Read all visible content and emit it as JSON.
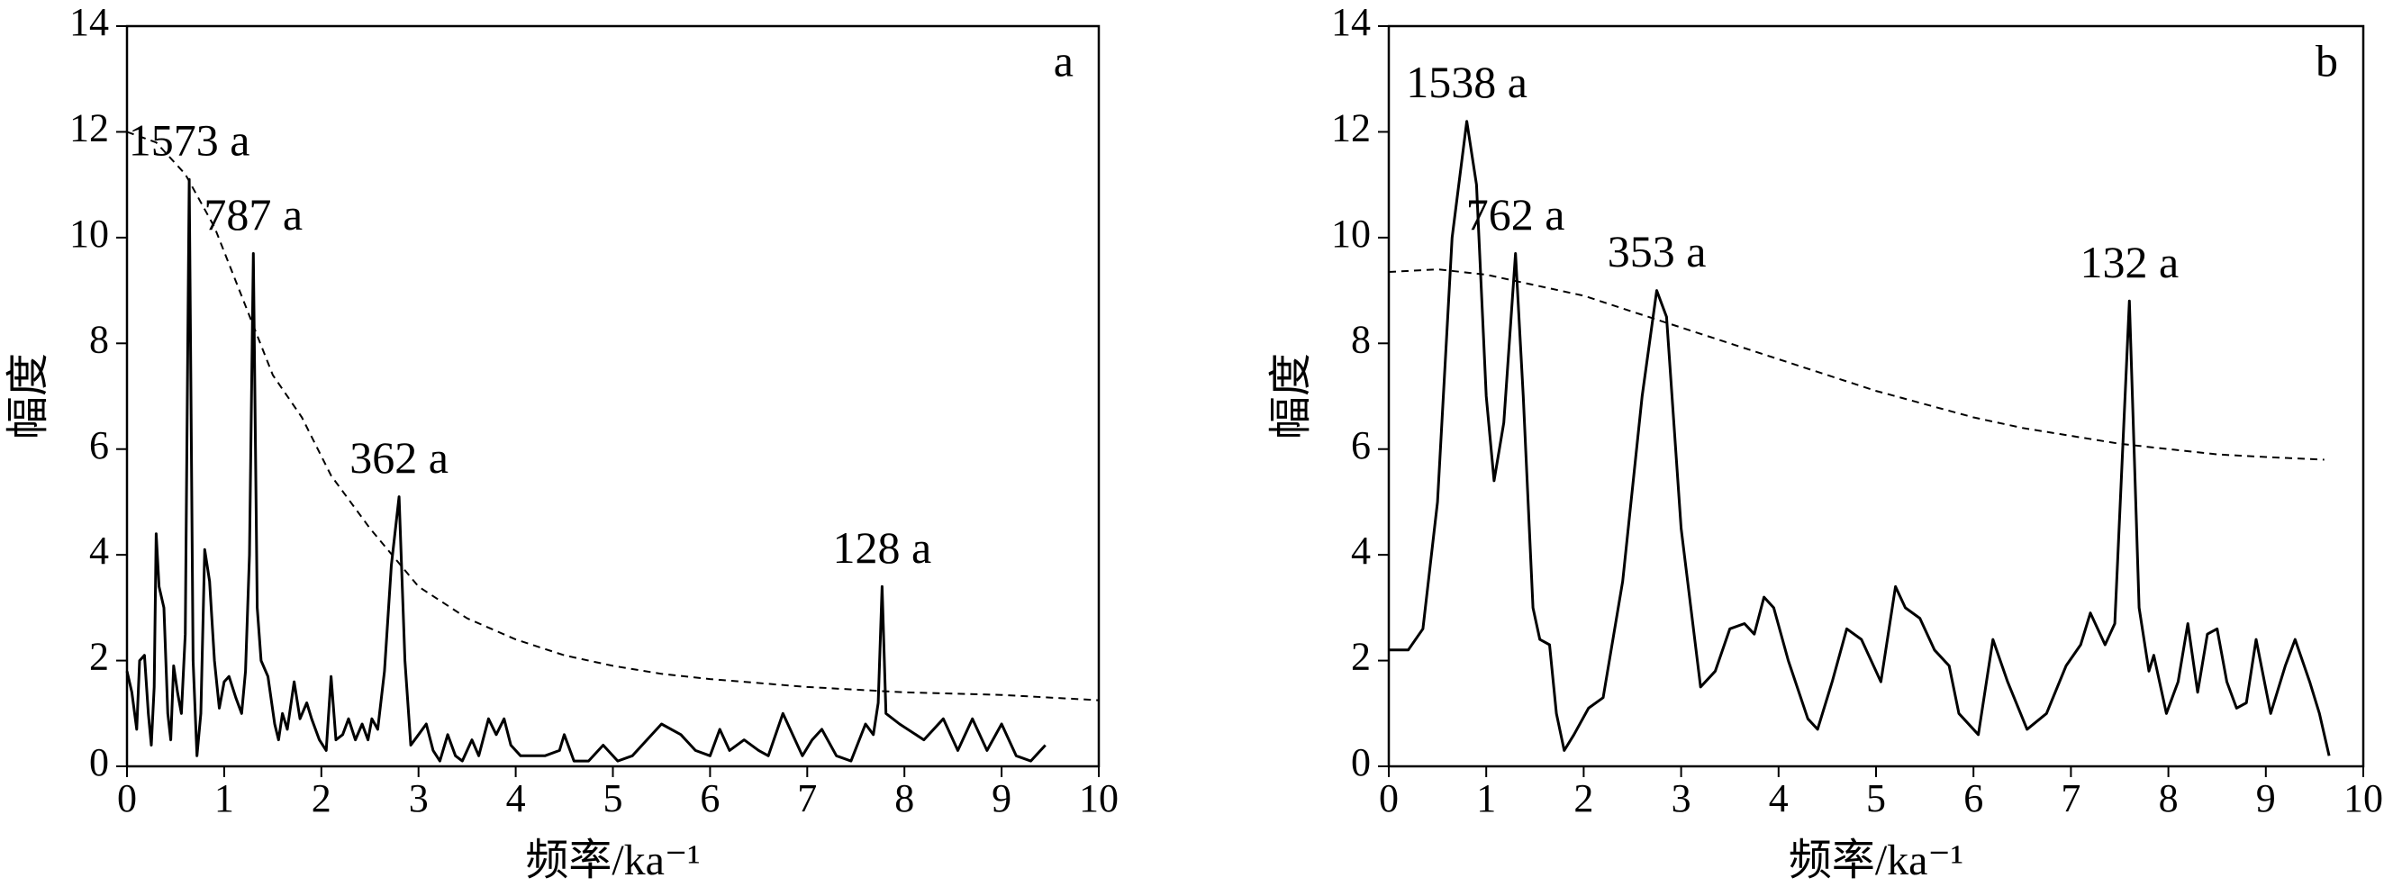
{
  "chart_data": [
    {
      "type": "line",
      "panel": "a",
      "xlabel": "频率/ka⁻¹",
      "ylabel": "幅度",
      "xlim": [
        0,
        10
      ],
      "xticks": [
        0,
        1,
        2,
        3,
        4,
        5,
        6,
        7,
        8,
        9,
        10
      ],
      "ylim": [
        0,
        14
      ],
      "yticks": [
        0,
        2,
        4,
        6,
        8,
        10,
        12,
        14
      ],
      "series": [
        {
          "color": "#000000",
          "dashed": false,
          "x": [
            0,
            0.05,
            0.1,
            0.13,
            0.18,
            0.22,
            0.25,
            0.28,
            0.3,
            0.33,
            0.38,
            0.42,
            0.45,
            0.48,
            0.52,
            0.56,
            0.6,
            0.64,
            0.68,
            0.72,
            0.76,
            0.8,
            0.85,
            0.9,
            0.95,
            1.0,
            1.05,
            1.12,
            1.18,
            1.22,
            1.26,
            1.3,
            1.34,
            1.38,
            1.45,
            1.52,
            1.56,
            1.6,
            1.65,
            1.72,
            1.78,
            1.85,
            1.9,
            1.98,
            2.05,
            2.1,
            2.15,
            2.22,
            2.28,
            2.35,
            2.42,
            2.48,
            2.52,
            2.58,
            2.65,
            2.72,
            2.8,
            2.86,
            2.92,
            3.0,
            3.08,
            3.15,
            3.22,
            3.3,
            3.38,
            3.45,
            3.55,
            3.62,
            3.72,
            3.8,
            3.88,
            3.95,
            4.05,
            4.3,
            4.45,
            4.5,
            4.6,
            4.75,
            4.9,
            5.05,
            5.2,
            5.35,
            5.5,
            5.7,
            5.85,
            6.0,
            6.1,
            6.2,
            6.35,
            6.5,
            6.6,
            6.75,
            6.85,
            6.95,
            7.05,
            7.15,
            7.3,
            7.45,
            7.6,
            7.68,
            7.73,
            7.77,
            7.81,
            7.95,
            8.2,
            8.4,
            8.55,
            8.7,
            8.85,
            9.0,
            9.15,
            9.3,
            9.45
          ],
          "values": [
            1.8,
            1.4,
            0.7,
            2.0,
            2.1,
            1.0,
            0.4,
            1.5,
            4.4,
            3.4,
            3.0,
            1.0,
            0.5,
            1.9,
            1.4,
            1.0,
            2.5,
            11.1,
            2.0,
            0.2,
            1.0,
            4.1,
            3.5,
            2.0,
            1.1,
            1.6,
            1.7,
            1.3,
            1.0,
            1.8,
            4.0,
            9.7,
            3.0,
            2.0,
            1.7,
            0.8,
            0.5,
            1.0,
            0.7,
            1.6,
            0.9,
            1.2,
            0.9,
            0.5,
            0.3,
            1.7,
            0.5,
            0.6,
            0.9,
            0.5,
            0.8,
            0.5,
            0.9,
            0.7,
            1.8,
            3.8,
            5.1,
            2.0,
            0.4,
            0.6,
            0.8,
            0.3,
            0.1,
            0.6,
            0.2,
            0.1,
            0.5,
            0.2,
            0.9,
            0.6,
            0.9,
            0.4,
            0.2,
            0.2,
            0.3,
            0.6,
            0.1,
            0.1,
            0.4,
            0.1,
            0.2,
            0.5,
            0.8,
            0.6,
            0.3,
            0.2,
            0.7,
            0.3,
            0.5,
            0.3,
            0.2,
            1.0,
            0.6,
            0.2,
            0.5,
            0.7,
            0.2,
            0.1,
            0.8,
            0.6,
            1.2,
            3.4,
            1.0,
            0.8,
            0.5,
            0.9,
            0.3,
            0.9,
            0.3,
            0.8,
            0.2,
            0.1,
            0.4
          ]
        },
        {
          "color": "#000000",
          "dashed": true,
          "x": [
            0,
            0.3,
            0.6,
            0.9,
            1.2,
            1.5,
            1.8,
            2.1,
            2.5,
            3.0,
            3.5,
            4.0,
            4.5,
            5.0,
            5.5,
            6.0,
            7.0,
            8.0,
            9.0,
            10.0
          ],
          "values": [
            12.0,
            11.8,
            11.2,
            10.2,
            8.8,
            7.4,
            6.6,
            5.5,
            4.5,
            3.4,
            2.8,
            2.4,
            2.1,
            1.9,
            1.75,
            1.65,
            1.5,
            1.4,
            1.35,
            1.25
          ]
        }
      ],
      "annotations": [
        {
          "text": "1573 a",
          "x": 0.64,
          "y": 11.1
        },
        {
          "text": "787 a",
          "x": 1.3,
          "y": 9.7
        },
        {
          "text": "362 a",
          "x": 2.8,
          "y": 5.1
        },
        {
          "text": "128 a",
          "x": 7.77,
          "y": 3.4
        }
      ]
    },
    {
      "type": "line",
      "panel": "b",
      "xlabel": "频率/ka⁻¹",
      "ylabel": "幅度",
      "xlim": [
        0,
        10
      ],
      "xticks": [
        0,
        1,
        2,
        3,
        4,
        5,
        6,
        7,
        8,
        9,
        10
      ],
      "ylim": [
        0,
        14
      ],
      "yticks": [
        0,
        2,
        4,
        6,
        8,
        10,
        12,
        14
      ],
      "series": [
        {
          "color": "#000000",
          "dashed": false,
          "x": [
            0,
            0.2,
            0.35,
            0.5,
            0.65,
            0.8,
            0.9,
            1.0,
            1.08,
            1.18,
            1.3,
            1.38,
            1.48,
            1.55,
            1.65,
            1.72,
            1.8,
            1.9,
            2.05,
            2.2,
            2.4,
            2.6,
            2.75,
            2.85,
            3.0,
            3.2,
            3.35,
            3.5,
            3.65,
            3.75,
            3.85,
            3.95,
            4.1,
            4.3,
            4.4,
            4.55,
            4.7,
            4.85,
            5.05,
            5.2,
            5.3,
            5.45,
            5.6,
            5.75,
            5.85,
            6.05,
            6.2,
            6.35,
            6.55,
            6.75,
            6.95,
            7.1,
            7.2,
            7.35,
            7.45,
            7.6,
            7.7,
            7.8,
            7.85,
            7.98,
            8.1,
            8.2,
            8.3,
            8.4,
            8.5,
            8.6,
            8.7,
            8.8,
            8.9,
            9.05,
            9.2,
            9.3,
            9.45,
            9.55,
            9.65
          ],
          "values": [
            2.2,
            2.2,
            2.6,
            5.0,
            10.0,
            12.2,
            11.0,
            7.0,
            5.4,
            6.5,
            9.7,
            7.0,
            3.0,
            2.4,
            2.3,
            1.0,
            0.3,
            0.6,
            1.1,
            1.3,
            3.5,
            7.0,
            9.0,
            8.5,
            4.5,
            1.5,
            1.8,
            2.6,
            2.7,
            2.5,
            3.2,
            3.0,
            2.0,
            0.9,
            0.7,
            1.6,
            2.6,
            2.4,
            1.6,
            3.4,
            3.0,
            2.8,
            2.2,
            1.9,
            1.0,
            0.6,
            2.4,
            1.6,
            0.7,
            1.0,
            1.9,
            2.3,
            2.9,
            2.3,
            2.7,
            8.8,
            3.0,
            1.8,
            2.1,
            1.0,
            1.6,
            2.7,
            1.4,
            2.5,
            2.6,
            1.6,
            1.1,
            1.2,
            2.4,
            1.0,
            1.9,
            2.4,
            1.6,
            1.0,
            0.2
          ]
        },
        {
          "color": "#000000",
          "dashed": true,
          "x": [
            0,
            0.5,
            1.0,
            1.5,
            2,
            2.5,
            3,
            3.5,
            4,
            4.5,
            5,
            5.5,
            6,
            6.5,
            7,
            7.5,
            8,
            8.5,
            9,
            9.6
          ],
          "values": [
            9.35,
            9.4,
            9.3,
            9.1,
            8.9,
            8.6,
            8.3,
            8.0,
            7.7,
            7.4,
            7.1,
            6.85,
            6.6,
            6.4,
            6.25,
            6.1,
            6.0,
            5.9,
            5.85,
            5.8
          ]
        }
      ],
      "annotations": [
        {
          "text": "1538 a",
          "x": 0.8,
          "y": 12.2
        },
        {
          "text": "762 a",
          "x": 1.3,
          "y": 9.7
        },
        {
          "text": "353 a",
          "x": 2.75,
          "y": 9.0
        },
        {
          "text": "132 a",
          "x": 7.6,
          "y": 8.8
        }
      ]
    }
  ]
}
